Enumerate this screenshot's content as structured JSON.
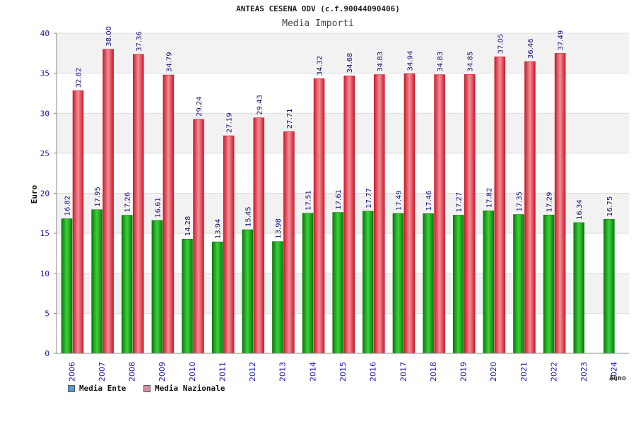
{
  "chart_data": {
    "type": "bar",
    "title": "ANTEAS CESENA ODV (c.f.90044090406)",
    "subtitle": "Media Importi",
    "ylabel": "Euro",
    "xlabel": "Anno",
    "ylim": [
      0,
      40
    ],
    "yticks": [
      0,
      5,
      10,
      15,
      20,
      25,
      30,
      35,
      40
    ],
    "grid": true,
    "legend_position": "bottom-left",
    "categories": [
      "2006",
      "2007",
      "2008",
      "2009",
      "2010",
      "2011",
      "2012",
      "2013",
      "2014",
      "2015",
      "2016",
      "2017",
      "2018",
      "2019",
      "2020",
      "2021",
      "2022",
      "2023",
      "2024"
    ],
    "series": [
      {
        "name": "Media Ente",
        "color": "#22aa22",
        "legend_color": "#5599dd",
        "values": [
          16.82,
          17.95,
          17.26,
          16.61,
          14.28,
          13.94,
          15.45,
          13.98,
          17.51,
          17.61,
          17.77,
          17.49,
          17.46,
          17.27,
          17.82,
          17.35,
          17.29,
          16.34,
          16.75
        ],
        "labels": [
          "16.82",
          "17.95",
          "17.26",
          "16.61",
          "14.28",
          "13.94",
          "15.45",
          "13.98",
          "17.51",
          "17.61",
          "17.77",
          "17.49",
          "17.46",
          "17.27",
          "17.82",
          "17.35",
          "17.29",
          "16.34",
          "16.75"
        ]
      },
      {
        "name": "Media Nazionale",
        "color": "#e23344",
        "legend_color": "#dd88aa",
        "values": [
          32.82,
          38.0,
          37.36,
          34.79,
          29.24,
          27.19,
          29.43,
          27.71,
          34.32,
          34.68,
          34.83,
          34.94,
          34.83,
          34.85,
          37.05,
          36.46,
          37.49,
          null,
          null
        ],
        "labels": [
          "32.82",
          "38.00",
          "37.36",
          "34.79",
          "29.24",
          "27.19",
          "29.43",
          "27.71",
          "34.32",
          "34.68",
          "34.83",
          "34.94",
          "34.83",
          "34.85",
          "37.05",
          "36.46",
          "37.49",
          null,
          null
        ]
      }
    ]
  }
}
